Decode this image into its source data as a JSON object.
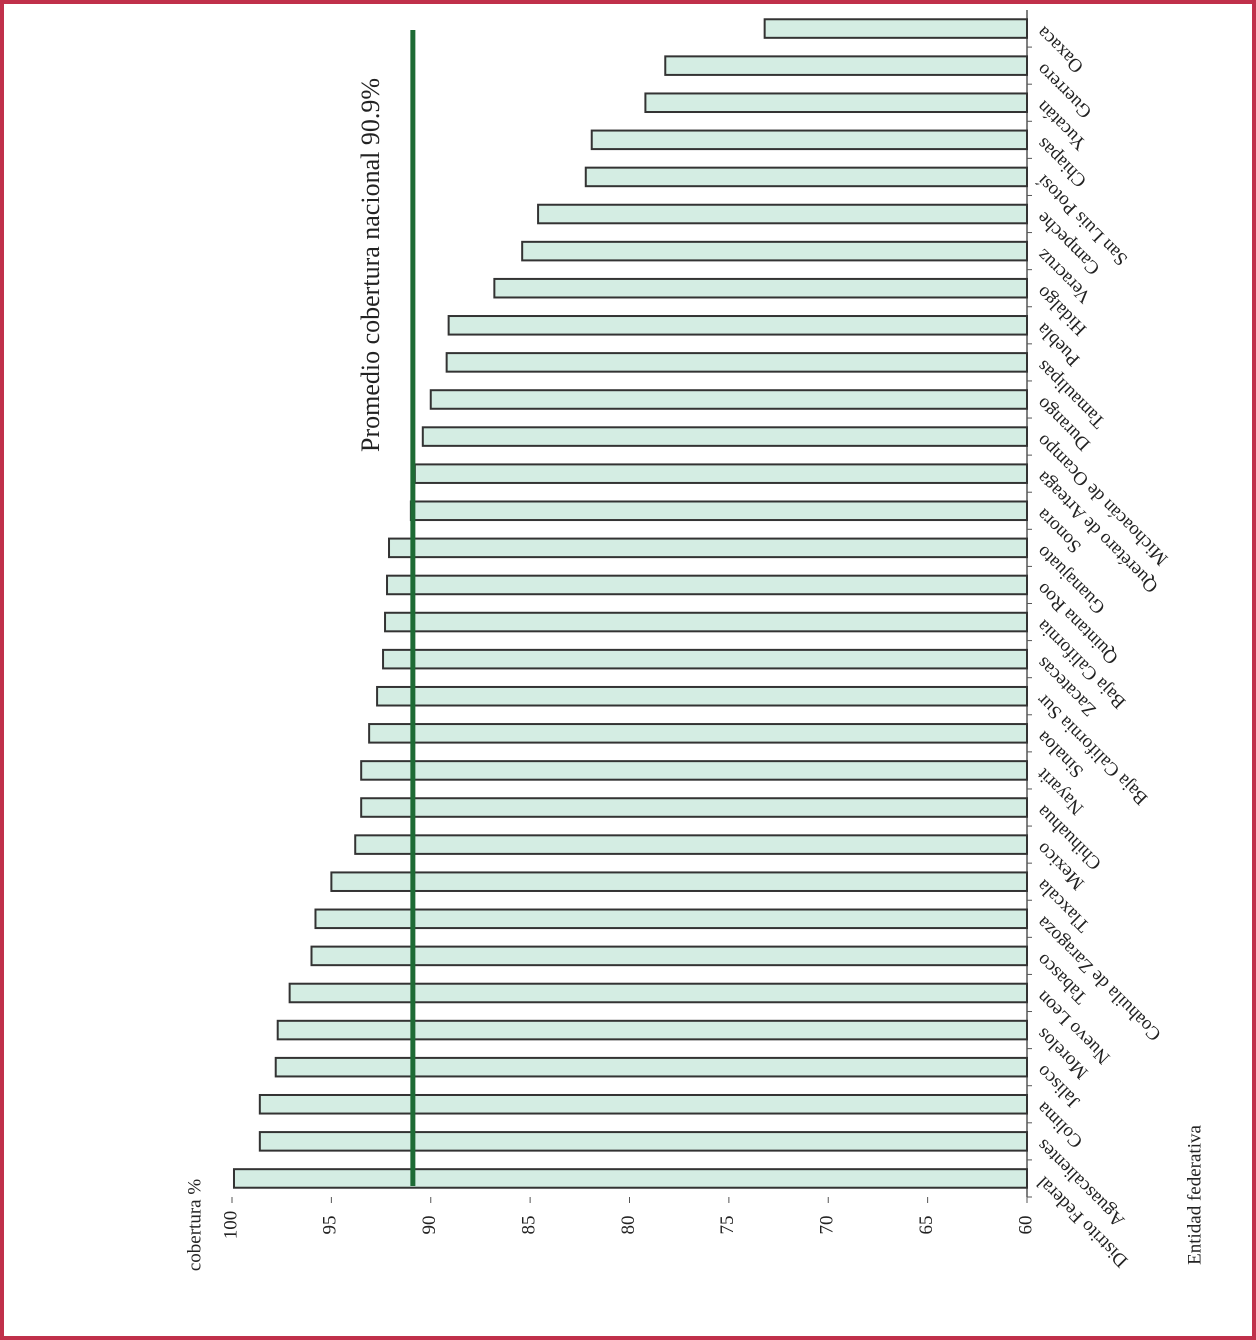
{
  "chart_data": {
    "type": "bar",
    "orientation": "horizontal",
    "x_label": "cobertura %",
    "y_label": "Entidad federativa",
    "categories": [
      "Distrito Federal",
      "Aguascalientes",
      "Colima",
      "Jalisco",
      "Morelos",
      "Nuevo Leon",
      "Tabasco",
      "Coahuila de Zaragoza",
      "Tlaxcala",
      "Mexico",
      "Chihuahua",
      "Nayarit",
      "Sinaloa",
      "Baja California Sur",
      "Zacatecas",
      "Baja California",
      "Quintana Roo",
      "Guanajuato",
      "Sonora",
      "Querétaro de Arteaga",
      "Michoacán de Ocampo",
      "Durango",
      "Tamaulipas",
      "Puebla",
      "Hidalgo",
      "Veracruz",
      "Campeche",
      "San Luis Potosí",
      "Chiapas",
      "Yucatán",
      "Guerrero",
      "Oaxaca"
    ],
    "values": [
      99.9,
      98.6,
      98.6,
      97.8,
      97.7,
      97.1,
      96.0,
      95.8,
      95.0,
      93.8,
      93.5,
      93.5,
      93.1,
      92.7,
      92.4,
      92.3,
      92.2,
      92.1,
      91.0,
      90.8,
      90.4,
      90.0,
      89.2,
      89.1,
      86.8,
      85.4,
      84.6,
      82.2,
      81.9,
      79.2,
      78.2,
      73.2
    ],
    "color": "#d4ede3",
    "xlim": [
      60,
      100
    ],
    "xticks": [
      60,
      65,
      70,
      75,
      80,
      85,
      90,
      95,
      100
    ],
    "reference": {
      "value": 90.9,
      "label": "Promedio cobertura nacional 90.9%",
      "color": "#1e6b35"
    }
  }
}
